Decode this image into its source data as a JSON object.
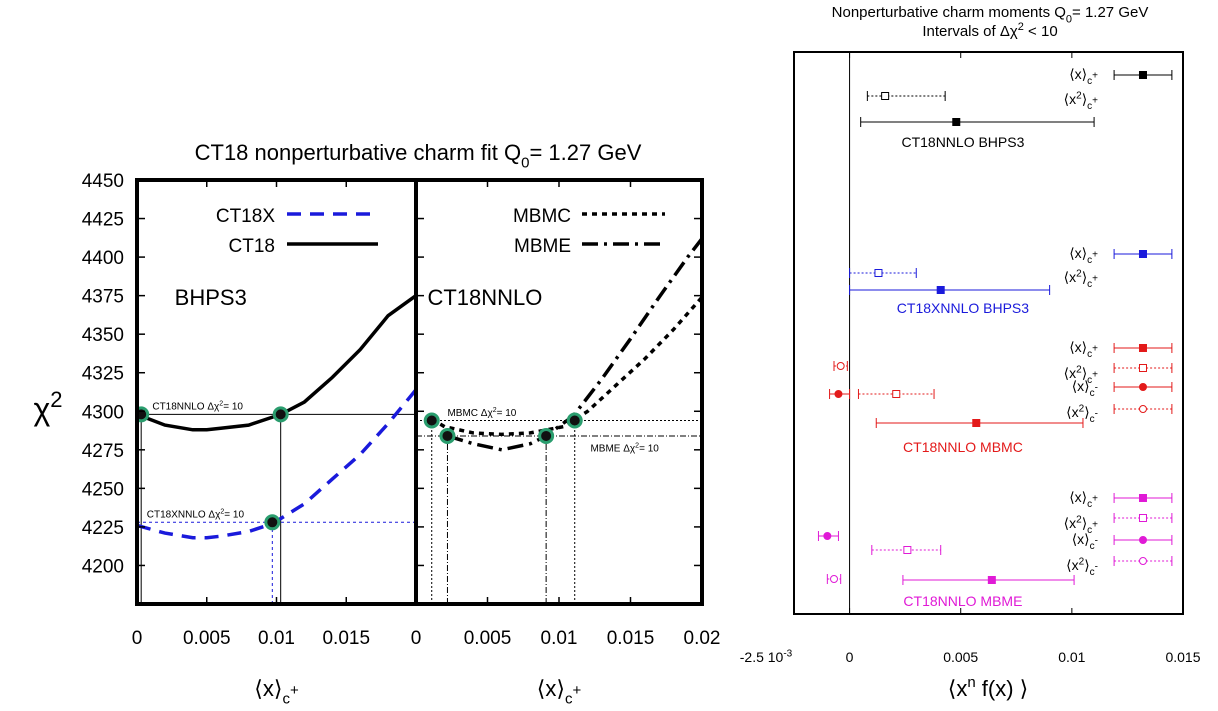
{
  "chart_data": [
    {
      "type": "line",
      "title_main": "CT18 nonperturbative charm fit Q",
      "title_sub": "0",
      "title_tail": "= 1.27 GeV",
      "ylabel": "χ",
      "ylabel_sup": "2",
      "panels": [
        {
          "xlabel": "⟨x⟩",
          "xlabel_sub": "c",
          "xlabel_sup": "+",
          "xlim": [
            0,
            0.02
          ],
          "ylim": [
            4175,
            4450
          ],
          "x_ticks": [
            "0",
            "0.005",
            "0.01",
            "0.015"
          ],
          "y_ticks": [
            "4450",
            "4425",
            "4400",
            "4375",
            "4350",
            "4325",
            "4300",
            "4275",
            "4250",
            "4225",
            "4200"
          ],
          "y_tick_values": [
            4450,
            4425,
            4400,
            4375,
            4350,
            4325,
            4300,
            4275,
            4250,
            4225,
            4200
          ],
          "x_tick_values": [
            0,
            0.005,
            0.01,
            0.015
          ],
          "label": "BHPS3",
          "series": [
            {
              "name": "CT18X",
              "style": "dashed",
              "color": "#1a1adb",
              "x": [
                0.0,
                0.002,
                0.004,
                0.005,
                0.006,
                0.008,
                0.0097,
                0.012,
                0.014,
                0.016,
                0.018,
                0.02
              ],
              "y": [
                4226,
                4221,
                4218,
                4218,
                4219,
                4222,
                4227,
                4240,
                4256,
                4272,
                4292,
                4314
              ]
            },
            {
              "name": "CT18",
              "style": "solid",
              "color": "#000000",
              "x": [
                0.0,
                0.002,
                0.004,
                0.005,
                0.006,
                0.008,
                0.0103,
                0.012,
                0.014,
                0.016,
                0.018,
                0.02
              ],
              "y": [
                4298,
                4291,
                4288,
                4288,
                4289,
                4291,
                4298,
                4306,
                4322,
                4340,
                4362,
                4375
              ]
            }
          ],
          "markers": [
            {
              "x": 0.0003,
              "y": 4298
            },
            {
              "x": 0.0103,
              "y": 4298
            },
            {
              "x": 0.0097,
              "y": 4228
            }
          ],
          "annotations": [
            {
              "text": "CT18NNLO Δχ",
              "sup": "2",
              "tail": "= 10",
              "x": 0.0011,
              "y": 4301
            },
            {
              "text": "CT18XNNLO Δχ",
              "sup": "2",
              "tail": "= 10",
              "x": 0.0007,
              "y": 4231
            }
          ],
          "ref_lines": [
            {
              "type": "hline",
              "y": 4298,
              "x0": 0,
              "x1": 0.02,
              "color": "#000000",
              "dash": ""
            },
            {
              "type": "vline",
              "x": 0.0003,
              "y0": 4175,
              "y1": 4298,
              "color": "#000000",
              "dash": ""
            },
            {
              "type": "vline",
              "x": 0.0103,
              "y0": 4175,
              "y1": 4298,
              "color": "#000000",
              "dash": ""
            },
            {
              "type": "hline",
              "y": 4228,
              "x0": 0,
              "x1": 0.02,
              "color": "#1a1adb",
              "dash": "3,3"
            },
            {
              "type": "vline",
              "x": 0.0097,
              "y0": 4175,
              "y1": 4228,
              "color": "#1a1adb",
              "dash": "3,3"
            }
          ]
        },
        {
          "xlabel": "⟨x⟩",
          "xlabel_sub": "c",
          "xlabel_sup": "+",
          "xlim": [
            0,
            0.02
          ],
          "ylim": [
            4175,
            4450
          ],
          "x_ticks": [
            "0",
            "0.005",
            "0.01",
            "0.015",
            "0.02"
          ],
          "x_tick_values": [
            0,
            0.005,
            0.01,
            0.015,
            0.02
          ],
          "label": "CT18NNLO",
          "series": [
            {
              "name": "MBMC",
              "style": "dotted",
              "color": "#000000",
              "x": [
                0.0011,
                0.002,
                0.004,
                0.006,
                0.008,
                0.0103,
                0.012,
                0.014,
                0.016,
                0.018,
                0.02
              ],
              "y": [
                4295,
                4290,
                4286,
                4285,
                4286,
                4290,
                4300,
                4317,
                4334,
                4353,
                4374
              ]
            },
            {
              "name": "MBME",
              "style": "dashdot",
              "color": "#000000",
              "x": [
                0.0022,
                0.004,
                0.006,
                0.008,
                0.0091,
                0.011,
                0.013,
                0.015,
                0.017,
                0.019,
                0.02
              ],
              "y": [
                4284,
                4279,
                4275,
                4279,
                4284,
                4297,
                4321,
                4347,
                4374,
                4400,
                4412
              ]
            }
          ],
          "markers": [
            {
              "x": 0.0011,
              "y": 4294
            },
            {
              "x": 0.0022,
              "y": 4284
            },
            {
              "x": 0.0091,
              "y": 4284
            },
            {
              "x": 0.0111,
              "y": 4294
            }
          ],
          "annotations": [
            {
              "text": "MBMC Δχ",
              "sup": "2",
              "tail": "= 10",
              "x": 0.0022,
              "y": 4297
            },
            {
              "text": "MBME Δχ",
              "sup": "2",
              "tail": "= 10",
              "x": 0.0122,
              "y": 4274
            }
          ],
          "ref_lines": [
            {
              "type": "hline",
              "y": 4294,
              "x0": 0,
              "x1": 0.02,
              "color": "#000000",
              "dash": "2,2"
            },
            {
              "type": "hline",
              "y": 4284,
              "x0": 0,
              "x1": 0.02,
              "color": "#000000",
              "dash": "6,2,1,2"
            },
            {
              "type": "vline",
              "x": 0.0011,
              "y0": 4175,
              "y1": 4294,
              "color": "#000000",
              "dash": "2,2"
            },
            {
              "type": "vline",
              "x": 0.0111,
              "y0": 4175,
              "y1": 4294,
              "color": "#000000",
              "dash": "2,2"
            },
            {
              "type": "vline",
              "x": 0.0022,
              "y0": 4175,
              "y1": 4284,
              "color": "#000000",
              "dash": "6,2,1,2"
            },
            {
              "type": "vline",
              "x": 0.0091,
              "y0": 4175,
              "y1": 4284,
              "color": "#000000",
              "dash": "6,2,1,2"
            }
          ]
        }
      ]
    },
    {
      "type": "scatter",
      "title_line1_main": "Nonperturbative charm moments Q",
      "title_line1_sub": "0",
      "title_line1_tail": "= 1.27 GeV",
      "title_line2_main": "Intervals of Δχ",
      "title_line2_sup": "2",
      "title_line2_tail": " < 10",
      "xlabel_main": "⟨x",
      "xlabel_sup": "n",
      "xlabel_tail": " f(x) ⟩",
      "xlim": [
        -0.0025,
        0.015
      ],
      "x_ticks": [
        {
          "value": -0.0025,
          "label": "-2.5 10",
          "sup": "-3"
        },
        {
          "value": 0,
          "label": "0",
          "sup": ""
        },
        {
          "value": 0.005,
          "label": "0.005",
          "sup": ""
        },
        {
          "value": 0.01,
          "label": "0.01",
          "sup": ""
        },
        {
          "value": 0.015,
          "label": "0.015",
          "sup": ""
        }
      ],
      "groups": [
        {
          "name": "CT18NNLO BHPS3",
          "color": "#000000",
          "rows": [
            {
              "label": "⟨x⟩",
              "sub": "c",
              "sup": "+",
              "value": 0.0132,
              "lo": 0.0119,
              "hi": 0.0145,
              "filled": true,
              "shape": "square",
              "style": "solid"
            },
            {
              "label": "⟨x",
              "sup2": "2",
              "tail": "⟩",
              "sub": "c",
              "sup": "+",
              "value": 0.0016,
              "lo": 0.0008,
              "hi": 0.0043,
              "filled": false,
              "shape": "square",
              "style": "dotted"
            },
            {
              "label": "",
              "value": 0.0048,
              "lo": 0.0005,
              "hi": 0.011,
              "filled": true,
              "shape": "square",
              "style": "solid"
            }
          ]
        },
        {
          "name": "CT18XNNLO BHPS3",
          "color": "#1a1adb",
          "rows": [
            {
              "label": "⟨x⟩",
              "sub": "c",
              "sup": "+",
              "value": 0.0132,
              "lo": 0.0119,
              "hi": 0.0145,
              "filled": true,
              "shape": "square",
              "style": "solid"
            },
            {
              "label": "⟨x",
              "sup2": "2",
              "tail": "⟩",
              "sub": "c",
              "sup": "+",
              "value": 0.0013,
              "lo": 0.0,
              "hi": 0.003,
              "filled": false,
              "shape": "square",
              "style": "dotted"
            },
            {
              "label": "",
              "value": 0.0041,
              "lo": 0.0,
              "hi": 0.009,
              "filled": true,
              "shape": "square",
              "style": "solid"
            }
          ]
        },
        {
          "name": "CT18NNLO MBMC",
          "color": "#e31a1a",
          "rows": [
            {
              "label": "⟨x⟩",
              "sub": "c",
              "sup": "+",
              "value": 0.0132,
              "lo": 0.0119,
              "hi": 0.0145,
              "filled": true,
              "shape": "square",
              "style": "solid"
            },
            {
              "label": "⟨x",
              "sup2": "2",
              "tail": "⟩",
              "sub": "c",
              "sup": "+",
              "value": 0.0132,
              "lo": 0.0119,
              "hi": 0.0145,
              "filled": false,
              "shape": "square",
              "style": "dotted"
            },
            {
              "label": "",
              "value": -0.0004,
              "lo": -0.0007,
              "hi": -0.0001,
              "filled": false,
              "shape": "circle",
              "style": "dotted"
            },
            {
              "label": "⟨x⟩",
              "sub": "c",
              "sup": "-",
              "value": 0.0132,
              "lo": 0.0119,
              "hi": 0.0145,
              "filled": true,
              "shape": "circle",
              "style": "solid"
            },
            {
              "label": "",
              "value": -0.0005,
              "lo": -0.0009,
              "hi": 0.0,
              "filled": true,
              "shape": "circle",
              "style": "solid"
            },
            {
              "label": "",
              "value": 0.0021,
              "lo": 0.0004,
              "hi": 0.0038,
              "filled": false,
              "shape": "square",
              "style": "dotted"
            },
            {
              "label": "⟨x",
              "sup2": "2",
              "tail": "⟩",
              "sub": "c",
              "sup": "-",
              "value": 0.0132,
              "lo": 0.0119,
              "hi": 0.0145,
              "filled": false,
              "shape": "circle",
              "style": "dotted"
            },
            {
              "label": "",
              "value": 0.0057,
              "lo": 0.0012,
              "hi": 0.0105,
              "filled": true,
              "shape": "square",
              "style": "solid"
            }
          ]
        },
        {
          "name": "CT18NNLO MBME",
          "color": "#e01ad6",
          "rows": [
            {
              "label": "⟨x⟩",
              "sub": "c",
              "sup": "+",
              "value": 0.0132,
              "lo": 0.0119,
              "hi": 0.0145,
              "filled": true,
              "shape": "square",
              "style": "solid"
            },
            {
              "label": "⟨x",
              "sup2": "2",
              "tail": "⟩",
              "sub": "c",
              "sup": "+",
              "value": 0.0132,
              "lo": 0.0119,
              "hi": 0.0145,
              "filled": false,
              "shape": "square",
              "style": "dotted"
            },
            {
              "label": "",
              "value": -0.001,
              "lo": -0.0014,
              "hi": -0.0005,
              "filled": true,
              "shape": "circle",
              "style": "solid"
            },
            {
              "label": "",
              "value": 0.0026,
              "lo": 0.001,
              "hi": 0.0041,
              "filled": false,
              "shape": "square",
              "style": "dotted"
            },
            {
              "label": "⟨x⟩",
              "sub": "c",
              "sup": "-",
              "value": 0.0132,
              "lo": 0.0119,
              "hi": 0.0145,
              "filled": true,
              "shape": "circle",
              "style": "solid"
            },
            {
              "label": "⟨x",
              "sup2": "2",
              "tail": "⟩",
              "sub": "c",
              "sup": "-",
              "value": 0.0132,
              "lo": 0.0119,
              "hi": 0.0145,
              "filled": false,
              "shape": "circle",
              "style": "dotted"
            },
            {
              "label": "",
              "value": -0.0007,
              "lo": -0.001,
              "hi": -0.0004,
              "filled": false,
              "shape": "circle",
              "style": "dotted"
            },
            {
              "label": "",
              "value": 0.0064,
              "lo": 0.0024,
              "hi": 0.0101,
              "filled": true,
              "shape": "square",
              "style": "solid"
            }
          ]
        }
      ]
    }
  ]
}
